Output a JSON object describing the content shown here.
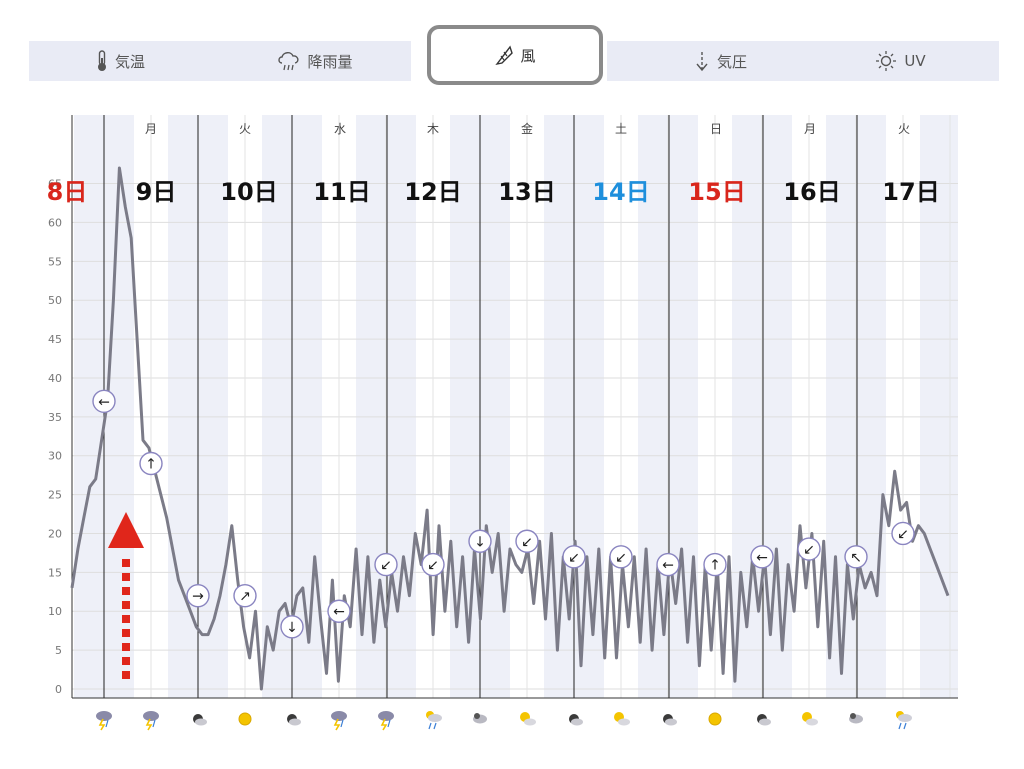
{
  "tabs": [
    {
      "id": "temperature",
      "label": "気温",
      "icon": "thermometer-icon"
    },
    {
      "id": "precipitation",
      "label": "降雨量",
      "icon": "rain-cloud-icon"
    },
    {
      "id": "wind",
      "label": "風",
      "icon": "windsock-icon",
      "active": true
    },
    {
      "id": "pressure",
      "label": "気圧",
      "icon": "pressure-icon"
    },
    {
      "id": "uv",
      "label": "UV",
      "icon": "sun-icon"
    }
  ],
  "days": [
    {
      "weekday": "",
      "date": "8日",
      "color": "#d9261c"
    },
    {
      "weekday": "月",
      "date": "9日",
      "color": "#111111"
    },
    {
      "weekday": "火",
      "date": "10日",
      "color": "#111111"
    },
    {
      "weekday": "水",
      "date": "11日",
      "color": "#111111"
    },
    {
      "weekday": "木",
      "date": "12日",
      "color": "#111111"
    },
    {
      "weekday": "金",
      "date": "13日",
      "color": "#111111"
    },
    {
      "weekday": "土",
      "date": "14日",
      "color": "#1e8fdc"
    },
    {
      "weekday": "日",
      "date": "15日",
      "color": "#d9261c"
    },
    {
      "weekday": "月",
      "date": "16日",
      "color": "#111111"
    },
    {
      "weekday": "火",
      "date": "17日",
      "color": "#111111"
    }
  ],
  "chart_data": {
    "type": "line",
    "ylim": [
      0,
      67
    ],
    "yticks": [
      0,
      5,
      10,
      15,
      20,
      25,
      30,
      35,
      40,
      45,
      50,
      55,
      60,
      65
    ],
    "series": [
      {
        "values": [
          13,
          18,
          22,
          26,
          27,
          32,
          37,
          50,
          67,
          62,
          58,
          45,
          32,
          31,
          28,
          25,
          22,
          18,
          14,
          12,
          10,
          8,
          7,
          7,
          9,
          12,
          16,
          21,
          14,
          8,
          4,
          10,
          0,
          8,
          5,
          10,
          11,
          8,
          12,
          13,
          6,
          17,
          9,
          2,
          14,
          1,
          12,
          8,
          18,
          7,
          17,
          6,
          14,
          8,
          15,
          10,
          17,
          12,
          20,
          16,
          23,
          7,
          21,
          10,
          19,
          8,
          17,
          6,
          18,
          9,
          21,
          15,
          20,
          10,
          18,
          16,
          15,
          18,
          11,
          19,
          9,
          20,
          5,
          17,
          9,
          19,
          3,
          17,
          7,
          18,
          4,
          17,
          4,
          16,
          8,
          17,
          6,
          18,
          5,
          16,
          7,
          17,
          11,
          18,
          6,
          17,
          3,
          16,
          5,
          16,
          2,
          17,
          1,
          15,
          8,
          17,
          10,
          17,
          7,
          18,
          5,
          16,
          10,
          21,
          13,
          20,
          8,
          19,
          4,
          17,
          2,
          16,
          9,
          16,
          13,
          15,
          12,
          25,
          21,
          28,
          23,
          24,
          19,
          21,
          20,
          18,
          16,
          14,
          12
        ]
      }
    ],
    "wind_markers": [
      {
        "direction": "←",
        "value": 37
      },
      {
        "direction": "↑",
        "value": 29
      },
      {
        "direction": "→",
        "value": 12
      },
      {
        "direction": "↗",
        "value": 12
      },
      {
        "direction": "↓",
        "value": 8
      },
      {
        "direction": "←",
        "value": 10
      },
      {
        "direction": "↙",
        "value": 16
      },
      {
        "direction": "↙",
        "value": 16
      },
      {
        "direction": "↓",
        "value": 19
      },
      {
        "direction": "↙",
        "value": 19
      },
      {
        "direction": "↙",
        "value": 17
      },
      {
        "direction": "↙",
        "value": 17
      },
      {
        "direction": "←",
        "value": 16
      },
      {
        "direction": "↑",
        "value": 16
      },
      {
        "direction": "←",
        "value": 17
      },
      {
        "direction": "↙",
        "value": 18
      },
      {
        "direction": "↖",
        "value": 17
      },
      {
        "direction": "↙",
        "value": 20
      }
    ]
  },
  "weather_icons": [
    "storm",
    "storm",
    "cloudy-night",
    "sunny",
    "cloudy-night",
    "storm",
    "storm",
    "rain-sun",
    "cloudy",
    "sun-cloud",
    "cloudy-night",
    "sun-cloud",
    "cloudy-night",
    "sunny",
    "cloudy-night",
    "sun-cloud",
    "cloudy",
    "rain-sun"
  ],
  "annotation": {
    "arrow_color": "#e0261b"
  }
}
